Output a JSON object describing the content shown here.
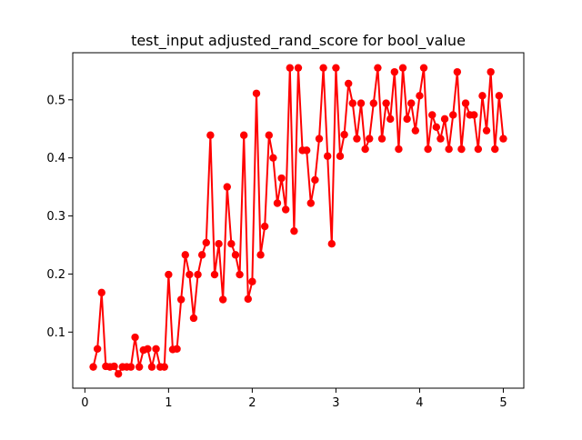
{
  "chart_data": {
    "type": "line",
    "title": "test_input adjusted_rand_score for bool_value",
    "xlabel": "",
    "ylabel": "",
    "xlim": [
      -0.145,
      5.245
    ],
    "ylim": [
      0.0034,
      0.5811
    ],
    "xticks": [
      0,
      1,
      2,
      3,
      4,
      5
    ],
    "xtick_labels": [
      "0",
      "1",
      "2",
      "3",
      "4",
      "5"
    ],
    "yticks": [
      0.1,
      0.2,
      0.3,
      0.4,
      0.5
    ],
    "ytick_labels": [
      "0.1",
      "0.2",
      "0.3",
      "0.4",
      "0.5"
    ],
    "grid": false,
    "line_color": "#ff0000",
    "marker": "circle",
    "series": [
      {
        "x": [
          0.1,
          0.15,
          0.2,
          0.25,
          0.3,
          0.35,
          0.4,
          0.45,
          0.5,
          0.55,
          0.6,
          0.65,
          0.7,
          0.75,
          0.8,
          0.85,
          0.9,
          0.95,
          1.0,
          1.05,
          1.1,
          1.15,
          1.2,
          1.25,
          1.3,
          1.35,
          1.4,
          1.45,
          1.5,
          1.55,
          1.6,
          1.65,
          1.7,
          1.75,
          1.8,
          1.85,
          1.9,
          1.95,
          2.0,
          2.05,
          2.1,
          2.15,
          2.2,
          2.25,
          2.3,
          2.35,
          2.4,
          2.45,
          2.5,
          2.55,
          2.6,
          2.65,
          2.7,
          2.75,
          2.8,
          2.85,
          2.9,
          2.95,
          3.0,
          3.05,
          3.1,
          3.15,
          3.2,
          3.25,
          3.3,
          3.35,
          3.4,
          3.45,
          3.5,
          3.55,
          3.6,
          3.65,
          3.7,
          3.75,
          3.8,
          3.85,
          3.9,
          3.95,
          4.0,
          4.05,
          4.1,
          4.15,
          4.2,
          4.25,
          4.3,
          4.35,
          4.4,
          4.45,
          4.5,
          4.55,
          4.6,
          4.65,
          4.7,
          4.75,
          4.8,
          4.85,
          4.9,
          4.95,
          5.0
        ],
        "values": [
          0.04,
          0.071,
          0.168,
          0.041,
          0.04,
          0.041,
          0.028,
          0.04,
          0.04,
          0.04,
          0.091,
          0.04,
          0.069,
          0.071,
          0.04,
          0.071,
          0.04,
          0.04,
          0.199,
          0.07,
          0.071,
          0.156,
          0.233,
          0.199,
          0.124,
          0.199,
          0.233,
          0.254,
          0.439,
          0.199,
          0.252,
          0.156,
          0.35,
          0.252,
          0.233,
          0.199,
          0.439,
          0.157,
          0.187,
          0.511,
          0.233,
          0.282,
          0.439,
          0.4,
          0.322,
          0.365,
          0.311,
          0.555,
          0.274,
          0.555,
          0.413,
          0.413,
          0.322,
          0.362,
          0.433,
          0.555,
          0.403,
          0.252,
          0.555,
          0.403,
          0.44,
          0.528,
          0.494,
          0.433,
          0.494,
          0.415,
          0.433,
          0.494,
          0.555,
          0.433,
          0.494,
          0.467,
          0.548,
          0.415,
          0.555,
          0.467,
          0.494,
          0.447,
          0.507,
          0.555,
          0.415,
          0.474,
          0.453,
          0.433,
          0.467,
          0.415,
          0.474,
          0.548,
          0.415,
          0.494,
          0.474,
          0.474,
          0.415,
          0.507,
          0.447,
          0.548,
          0.415,
          0.507,
          0.433
        ]
      }
    ]
  }
}
